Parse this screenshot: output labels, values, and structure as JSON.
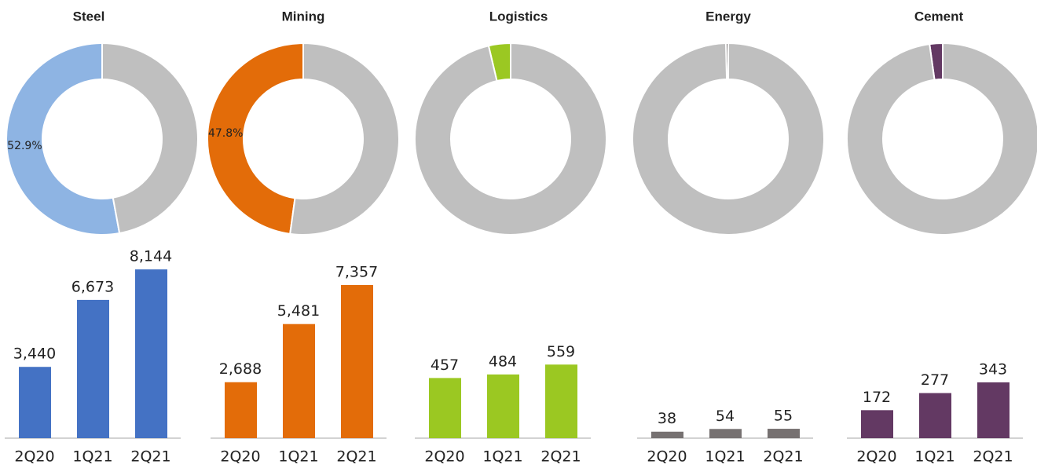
{
  "chart_data": [
    {
      "type": "pie",
      "title": "Steel",
      "values": [
        52.9,
        47.1
      ],
      "value_labels": [
        "52.9%",
        null
      ],
      "colors": [
        "#8eb4e3",
        "#bfbfbf"
      ]
    },
    {
      "type": "bar",
      "categories": [
        "2Q20",
        "1Q21",
        "2Q21"
      ],
      "values": [
        3440,
        6673,
        8144
      ],
      "value_labels": [
        "3,440",
        "6,673",
        "8,144"
      ],
      "color": "#4472c4",
      "ylim": [
        0,
        8640
      ]
    },
    {
      "type": "pie",
      "title": "Mining",
      "values": [
        47.8,
        52.2
      ],
      "value_labels": [
        "47.8%",
        null
      ],
      "colors": [
        "#e36c09",
        "#bfbfbf"
      ]
    },
    {
      "type": "bar",
      "categories": [
        "2Q20",
        "1Q21",
        "2Q21"
      ],
      "values": [
        2688,
        5481,
        7357
      ],
      "value_labels": [
        "2,688",
        "5,481",
        "7,357"
      ],
      "color": "#e36c09",
      "ylim": [
        0,
        8600
      ]
    },
    {
      "type": "pie",
      "title": "Logistics",
      "values": [
        3.7,
        96.3
      ],
      "value_labels": [
        "3.7%",
        null
      ],
      "colors": [
        "#9bc822",
        "#bfbfbf"
      ]
    },
    {
      "type": "bar",
      "categories": [
        "2Q20",
        "1Q21",
        "2Q21"
      ],
      "values": [
        457,
        484,
        559
      ],
      "color": "#9bc822",
      "ylim": [
        0,
        1360
      ]
    },
    {
      "type": "pie",
      "title": "Energy",
      "values": [
        0.4,
        99.6
      ],
      "value_labels": [
        "0.4%",
        null
      ],
      "colors": [
        "#767171",
        "#bfbfbf"
      ]
    },
    {
      "type": "bar",
      "categories": [
        "2Q20",
        "1Q21",
        "2Q21"
      ],
      "values": [
        38,
        54,
        55
      ],
      "color": "#767171",
      "ylim": [
        0,
        1050
      ]
    },
    {
      "type": "pie",
      "title": "Cement",
      "values": [
        2.2,
        97.8
      ],
      "value_labels": [
        "2.2%",
        null
      ],
      "colors": [
        "#633963",
        "#bfbfbf"
      ]
    },
    {
      "type": "bar",
      "categories": [
        "2Q20",
        "1Q21",
        "2Q21"
      ],
      "values": [
        172,
        277,
        343
      ],
      "color": "#633963",
      "ylim": [
        0,
        1100
      ]
    }
  ]
}
